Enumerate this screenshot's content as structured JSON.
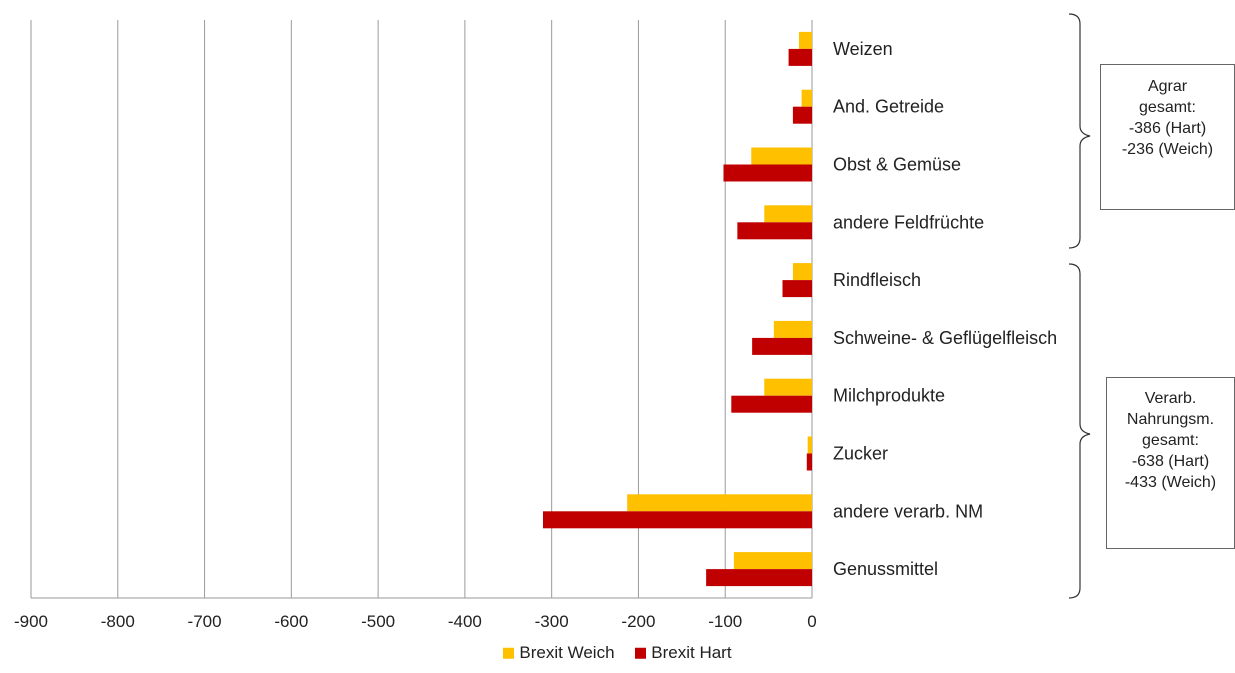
{
  "chart_data": {
    "type": "bar",
    "orientation": "horizontal",
    "categories": [
      "Weizen",
      "And. Getreide",
      "Obst & Gemüse",
      "andere Feldfrüchte",
      "Rindfleisch",
      "Schweine- & Geflügelfleisch",
      "Milchprodukte",
      "Zucker",
      "andere verarb. NM",
      "Genussmittel"
    ],
    "series": [
      {
        "name": "Brexit Weich",
        "color": "#FFC000",
        "values": [
          -15,
          -12,
          -70,
          -55,
          -22,
          -44,
          -55,
          -5,
          -213,
          -90
        ]
      },
      {
        "name": "Brexit Hart",
        "color": "#C00000",
        "values": [
          -27,
          -22,
          -102,
          -86,
          -34,
          -69,
          -93,
          -6,
          -310,
          -122
        ]
      }
    ],
    "xlim": [
      -900,
      0
    ],
    "xticks": [
      "-900",
      "-800",
      "-700",
      "-600",
      "-500",
      "-400",
      "-300",
      "-200",
      "-100",
      "0"
    ],
    "grid": true,
    "legend_position": "bottom",
    "annotations": [
      {
        "group": "agrar",
        "lines": [
          "Agrar",
          "gesamt:",
          "-386 (Hart)",
          "-236 (Weich)"
        ]
      },
      {
        "group": "verarb",
        "lines": [
          "Verarb.",
          "Nahrungsm.",
          "gesamt:",
          "-638 (Hart)",
          "-433 (Weich)"
        ]
      }
    ]
  }
}
